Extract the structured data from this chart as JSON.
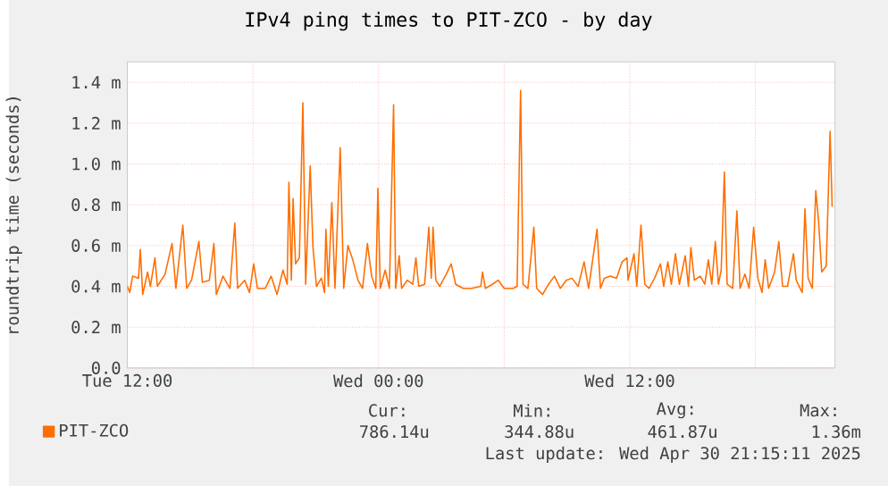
{
  "chart_data": {
    "type": "line",
    "title": "IPv4 ping times to PIT-ZCO - by day",
    "ylabel": "roundtrip time (seconds)",
    "xlim": [
      "2025-04-29T12:00",
      "2025-04-30T21:48"
    ],
    "ylim": [
      0,
      1.5
    ],
    "xticks": [
      {
        "value": "2025-04-29T12:00",
        "label": "Tue 12:00"
      },
      {
        "value": "2025-04-29T18:00",
        "label": null
      },
      {
        "value": "2025-04-30T00:00",
        "label": "Wed 00:00"
      },
      {
        "value": "2025-04-30T06:00",
        "label": null
      },
      {
        "value": "2025-04-30T12:00",
        "label": "Wed 12:00"
      },
      {
        "value": "2025-04-30T18:00",
        "label": null
      }
    ],
    "yticks": [
      {
        "value": 0,
        "label": "0.0"
      },
      {
        "value": 0.2,
        "label": "0.2 m"
      },
      {
        "value": 0.4,
        "label": "0.4 m"
      },
      {
        "value": 0.6,
        "label": "0.6 m"
      },
      {
        "value": 0.8,
        "label": "0.8 m"
      },
      {
        "value": 1.0,
        "label": "1.0 m"
      },
      {
        "value": 1.2,
        "label": "1.2 m"
      },
      {
        "value": 1.4,
        "label": "1.4 m"
      }
    ],
    "grid": true,
    "legend": "bottom left",
    "x": [
      "2025-04-29T12:00",
      "2025-04-29T12:07",
      "2025-04-29T12:15",
      "2025-04-29T12:32",
      "2025-04-29T12:37",
      "2025-04-29T12:44",
      "2025-04-29T12:58",
      "2025-04-29T13:06",
      "2025-04-29T13:19",
      "2025-04-29T13:26",
      "2025-04-29T13:48",
      "2025-04-29T14:08",
      "2025-04-29T14:19",
      "2025-04-29T14:39",
      "2025-04-29T14:50",
      "2025-04-29T15:04",
      "2025-04-29T15:25",
      "2025-04-29T15:35",
      "2025-04-29T15:55",
      "2025-04-29T16:08",
      "2025-04-29T16:15",
      "2025-04-29T16:34",
      "2025-04-29T16:54",
      "2025-04-29T17:08",
      "2025-04-29T17:16",
      "2025-04-29T17:36",
      "2025-04-29T17:50",
      "2025-04-29T18:02",
      "2025-04-29T18:13",
      "2025-04-29T18:35",
      "2025-04-29T18:52",
      "2025-04-29T19:09",
      "2025-04-29T19:26",
      "2025-04-29T19:38",
      "2025-04-29T19:43",
      "2025-04-29T19:50",
      "2025-04-29T19:55",
      "2025-04-29T20:02",
      "2025-04-29T20:13",
      "2025-04-29T20:23",
      "2025-04-29T20:31",
      "2025-04-29T20:44",
      "2025-04-29T20:52",
      "2025-04-29T21:02",
      "2025-04-29T21:16",
      "2025-04-29T21:25",
      "2025-04-29T21:29",
      "2025-04-29T21:36",
      "2025-04-29T21:46",
      "2025-04-29T21:55",
      "2025-04-29T22:10",
      "2025-04-29T22:20",
      "2025-04-29T22:32",
      "2025-04-29T22:46",
      "2025-04-29T23:01",
      "2025-04-29T23:14",
      "2025-04-29T23:28",
      "2025-04-29T23:40",
      "2025-04-29T23:52",
      "2025-04-29T23:58",
      "2025-04-30T00:05",
      "2025-04-30T00:19",
      "2025-04-30T00:31",
      "2025-04-30T00:43",
      "2025-04-30T00:49",
      "2025-04-30T00:59",
      "2025-04-30T01:06",
      "2025-04-30T01:22",
      "2025-04-30T01:38",
      "2025-04-30T01:47",
      "2025-04-30T01:55",
      "2025-04-30T02:12",
      "2025-04-30T02:24",
      "2025-04-30T02:31",
      "2025-04-30T02:36",
      "2025-04-30T02:44",
      "2025-04-30T02:55",
      "2025-04-30T03:14",
      "2025-04-30T03:28",
      "2025-04-30T03:41",
      "2025-04-30T04:02",
      "2025-04-30T04:27",
      "2025-04-30T04:53",
      "2025-04-30T04:58",
      "2025-04-30T05:06",
      "2025-04-30T05:26",
      "2025-04-30T05:43",
      "2025-04-30T06:00",
      "2025-04-30T06:26",
      "2025-04-30T06:37",
      "2025-04-30T06:47",
      "2025-04-30T06:54",
      "2025-04-30T07:08",
      "2025-04-30T07:25",
      "2025-04-30T07:33",
      "2025-04-30T07:50",
      "2025-04-30T08:07",
      "2025-04-30T08:24",
      "2025-04-30T08:41",
      "2025-04-30T08:58",
      "2025-04-30T09:14",
      "2025-04-30T09:32",
      "2025-04-30T09:49",
      "2025-04-30T10:02",
      "2025-04-30T10:26",
      "2025-04-30T10:36",
      "2025-04-30T10:47",
      "2025-04-30T11:04",
      "2025-04-30T11:22",
      "2025-04-30T11:38",
      "2025-04-30T11:52",
      "2025-04-30T11:55",
      "2025-04-30T12:12",
      "2025-04-30T12:20",
      "2025-04-30T12:32",
      "2025-04-30T12:43",
      "2025-04-30T12:55",
      "2025-04-30T13:11",
      "2025-04-30T13:28",
      "2025-04-30T13:37",
      "2025-04-30T13:49",
      "2025-04-30T13:59",
      "2025-04-30T14:11",
      "2025-04-30T14:22",
      "2025-04-30T14:39",
      "2025-04-30T14:48",
      "2025-04-30T14:55",
      "2025-04-30T15:05",
      "2025-04-30T15:22",
      "2025-04-30T15:35",
      "2025-04-30T15:45",
      "2025-04-30T15:55",
      "2025-04-30T16:05",
      "2025-04-30T16:14",
      "2025-04-30T16:22",
      "2025-04-30T16:31",
      "2025-04-30T16:39",
      "2025-04-30T16:55",
      "2025-04-30T17:07",
      "2025-04-30T17:16",
      "2025-04-30T17:30",
      "2025-04-30T17:42",
      "2025-04-30T17:55",
      "2025-04-30T18:07",
      "2025-04-30T18:19",
      "2025-04-30T18:28",
      "2025-04-30T18:38",
      "2025-04-30T18:55",
      "2025-04-30T19:07",
      "2025-04-30T19:18",
      "2025-04-30T19:32",
      "2025-04-30T19:49",
      "2025-04-30T19:57",
      "2025-04-30T20:14",
      "2025-04-30T20:22",
      "2025-04-30T20:31",
      "2025-04-30T20:43",
      "2025-04-30T20:53",
      "2025-04-30T21:01",
      "2025-04-30T21:10",
      "2025-04-30T21:23",
      "2025-04-30T21:34",
      "2025-04-30T21:40"
    ],
    "series": [
      {
        "name": "PIT-ZCO",
        "color": "#ff6e00",
        "values": [
          0.4,
          0.37,
          0.45,
          0.44,
          0.58,
          0.36,
          0.47,
          0.4,
          0.54,
          0.4,
          0.46,
          0.61,
          0.39,
          0.7,
          0.39,
          0.43,
          0.62,
          0.42,
          0.43,
          0.61,
          0.36,
          0.45,
          0.39,
          0.71,
          0.39,
          0.43,
          0.37,
          0.51,
          0.39,
          0.39,
          0.45,
          0.36,
          0.48,
          0.41,
          0.91,
          0.43,
          0.83,
          0.51,
          0.54,
          1.3,
          0.41,
          0.99,
          0.59,
          0.4,
          0.44,
          0.37,
          0.68,
          0.4,
          0.81,
          0.39,
          1.08,
          0.39,
          0.6,
          0.53,
          0.43,
          0.39,
          0.61,
          0.45,
          0.39,
          0.88,
          0.39,
          0.48,
          0.39,
          1.29,
          0.39,
          0.55,
          0.39,
          0.43,
          0.41,
          0.54,
          0.4,
          0.41,
          0.69,
          0.44,
          0.69,
          0.43,
          0.4,
          0.46,
          0.51,
          0.41,
          0.39,
          0.39,
          0.4,
          0.47,
          0.39,
          0.41,
          0.43,
          0.39,
          0.39,
          0.4,
          1.36,
          0.41,
          0.39,
          0.69,
          0.39,
          0.36,
          0.41,
          0.45,
          0.39,
          0.43,
          0.44,
          0.4,
          0.52,
          0.39,
          0.68,
          0.39,
          0.44,
          0.45,
          0.44,
          0.52,
          0.54,
          0.43,
          0.56,
          0.4,
          0.7,
          0.41,
          0.39,
          0.44,
          0.51,
          0.4,
          0.52,
          0.41,
          0.56,
          0.41,
          0.55,
          0.4,
          0.59,
          0.43,
          0.45,
          0.41,
          0.53,
          0.41,
          0.62,
          0.41,
          0.48,
          0.96,
          0.41,
          0.39,
          0.77,
          0.39,
          0.46,
          0.39,
          0.69,
          0.44,
          0.37,
          0.53,
          0.39,
          0.47,
          0.62,
          0.4,
          0.4,
          0.56,
          0.43,
          0.37,
          0.78,
          0.44,
          0.39,
          0.87,
          0.72,
          0.47,
          0.5,
          1.16,
          0.79
        ]
      }
    ],
    "annotations": [
      "Cur:",
      "786.14u",
      "Min:",
      "344.88u",
      "Avg:",
      "461.87u",
      "Max:",
      "1.36m",
      "Last update: Wed Apr 30 21:15:11 2025"
    ]
  }
}
